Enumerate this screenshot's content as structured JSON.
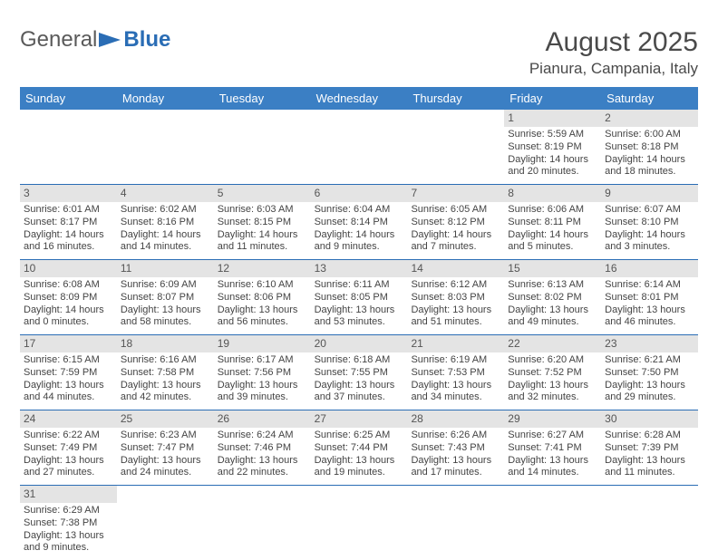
{
  "logo": {
    "text1": "General",
    "text2": "Blue"
  },
  "title": "August 2025",
  "location": "Pianura, Campania, Italy",
  "colors": {
    "header_bg": "#3b7fc4",
    "header_text": "#ffffff",
    "week_border": "#2a6db5",
    "daynum_bg": "#e4e4e4",
    "body_text": "#444444",
    "logo_gray": "#5a5a5a",
    "logo_blue": "#2a6db5"
  },
  "dayNames": [
    "Sunday",
    "Monday",
    "Tuesday",
    "Wednesday",
    "Thursday",
    "Friday",
    "Saturday"
  ],
  "weeks": [
    [
      {
        "n": "",
        "lines": []
      },
      {
        "n": "",
        "lines": []
      },
      {
        "n": "",
        "lines": []
      },
      {
        "n": "",
        "lines": []
      },
      {
        "n": "",
        "lines": []
      },
      {
        "n": "1",
        "lines": [
          "Sunrise: 5:59 AM",
          "Sunset: 8:19 PM",
          "Daylight: 14 hours and 20 minutes."
        ]
      },
      {
        "n": "2",
        "lines": [
          "Sunrise: 6:00 AM",
          "Sunset: 8:18 PM",
          "Daylight: 14 hours and 18 minutes."
        ]
      }
    ],
    [
      {
        "n": "3",
        "lines": [
          "Sunrise: 6:01 AM",
          "Sunset: 8:17 PM",
          "Daylight: 14 hours and 16 minutes."
        ]
      },
      {
        "n": "4",
        "lines": [
          "Sunrise: 6:02 AM",
          "Sunset: 8:16 PM",
          "Daylight: 14 hours and 14 minutes."
        ]
      },
      {
        "n": "5",
        "lines": [
          "Sunrise: 6:03 AM",
          "Sunset: 8:15 PM",
          "Daylight: 14 hours and 11 minutes."
        ]
      },
      {
        "n": "6",
        "lines": [
          "Sunrise: 6:04 AM",
          "Sunset: 8:14 PM",
          "Daylight: 14 hours and 9 minutes."
        ]
      },
      {
        "n": "7",
        "lines": [
          "Sunrise: 6:05 AM",
          "Sunset: 8:12 PM",
          "Daylight: 14 hours and 7 minutes."
        ]
      },
      {
        "n": "8",
        "lines": [
          "Sunrise: 6:06 AM",
          "Sunset: 8:11 PM",
          "Daylight: 14 hours and 5 minutes."
        ]
      },
      {
        "n": "9",
        "lines": [
          "Sunrise: 6:07 AM",
          "Sunset: 8:10 PM",
          "Daylight: 14 hours and 3 minutes."
        ]
      }
    ],
    [
      {
        "n": "10",
        "lines": [
          "Sunrise: 6:08 AM",
          "Sunset: 8:09 PM",
          "Daylight: 14 hours and 0 minutes."
        ]
      },
      {
        "n": "11",
        "lines": [
          "Sunrise: 6:09 AM",
          "Sunset: 8:07 PM",
          "Daylight: 13 hours and 58 minutes."
        ]
      },
      {
        "n": "12",
        "lines": [
          "Sunrise: 6:10 AM",
          "Sunset: 8:06 PM",
          "Daylight: 13 hours and 56 minutes."
        ]
      },
      {
        "n": "13",
        "lines": [
          "Sunrise: 6:11 AM",
          "Sunset: 8:05 PM",
          "Daylight: 13 hours and 53 minutes."
        ]
      },
      {
        "n": "14",
        "lines": [
          "Sunrise: 6:12 AM",
          "Sunset: 8:03 PM",
          "Daylight: 13 hours and 51 minutes."
        ]
      },
      {
        "n": "15",
        "lines": [
          "Sunrise: 6:13 AM",
          "Sunset: 8:02 PM",
          "Daylight: 13 hours and 49 minutes."
        ]
      },
      {
        "n": "16",
        "lines": [
          "Sunrise: 6:14 AM",
          "Sunset: 8:01 PM",
          "Daylight: 13 hours and 46 minutes."
        ]
      }
    ],
    [
      {
        "n": "17",
        "lines": [
          "Sunrise: 6:15 AM",
          "Sunset: 7:59 PM",
          "Daylight: 13 hours and 44 minutes."
        ]
      },
      {
        "n": "18",
        "lines": [
          "Sunrise: 6:16 AM",
          "Sunset: 7:58 PM",
          "Daylight: 13 hours and 42 minutes."
        ]
      },
      {
        "n": "19",
        "lines": [
          "Sunrise: 6:17 AM",
          "Sunset: 7:56 PM",
          "Daylight: 13 hours and 39 minutes."
        ]
      },
      {
        "n": "20",
        "lines": [
          "Sunrise: 6:18 AM",
          "Sunset: 7:55 PM",
          "Daylight: 13 hours and 37 minutes."
        ]
      },
      {
        "n": "21",
        "lines": [
          "Sunrise: 6:19 AM",
          "Sunset: 7:53 PM",
          "Daylight: 13 hours and 34 minutes."
        ]
      },
      {
        "n": "22",
        "lines": [
          "Sunrise: 6:20 AM",
          "Sunset: 7:52 PM",
          "Daylight: 13 hours and 32 minutes."
        ]
      },
      {
        "n": "23",
        "lines": [
          "Sunrise: 6:21 AM",
          "Sunset: 7:50 PM",
          "Daylight: 13 hours and 29 minutes."
        ]
      }
    ],
    [
      {
        "n": "24",
        "lines": [
          "Sunrise: 6:22 AM",
          "Sunset: 7:49 PM",
          "Daylight: 13 hours and 27 minutes."
        ]
      },
      {
        "n": "25",
        "lines": [
          "Sunrise: 6:23 AM",
          "Sunset: 7:47 PM",
          "Daylight: 13 hours and 24 minutes."
        ]
      },
      {
        "n": "26",
        "lines": [
          "Sunrise: 6:24 AM",
          "Sunset: 7:46 PM",
          "Daylight: 13 hours and 22 minutes."
        ]
      },
      {
        "n": "27",
        "lines": [
          "Sunrise: 6:25 AM",
          "Sunset: 7:44 PM",
          "Daylight: 13 hours and 19 minutes."
        ]
      },
      {
        "n": "28",
        "lines": [
          "Sunrise: 6:26 AM",
          "Sunset: 7:43 PM",
          "Daylight: 13 hours and 17 minutes."
        ]
      },
      {
        "n": "29",
        "lines": [
          "Sunrise: 6:27 AM",
          "Sunset: 7:41 PM",
          "Daylight: 13 hours and 14 minutes."
        ]
      },
      {
        "n": "30",
        "lines": [
          "Sunrise: 6:28 AM",
          "Sunset: 7:39 PM",
          "Daylight: 13 hours and 11 minutes."
        ]
      }
    ],
    [
      {
        "n": "31",
        "lines": [
          "Sunrise: 6:29 AM",
          "Sunset: 7:38 PM",
          "Daylight: 13 hours and 9 minutes."
        ]
      },
      {
        "n": "",
        "lines": []
      },
      {
        "n": "",
        "lines": []
      },
      {
        "n": "",
        "lines": []
      },
      {
        "n": "",
        "lines": []
      },
      {
        "n": "",
        "lines": []
      },
      {
        "n": "",
        "lines": []
      }
    ]
  ]
}
